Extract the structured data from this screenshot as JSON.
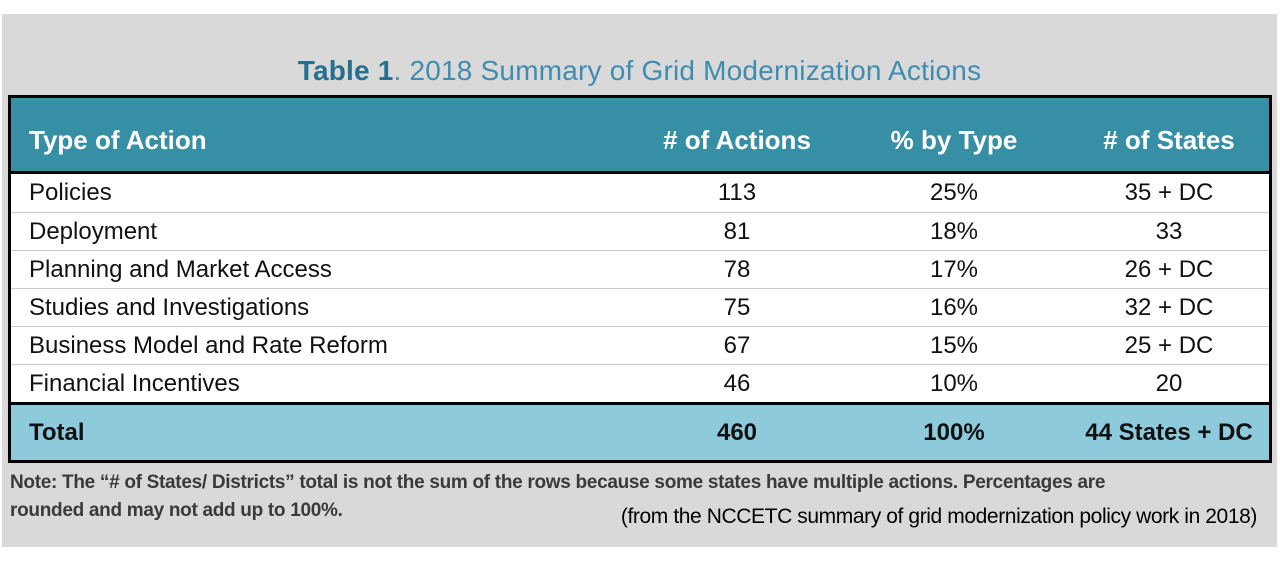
{
  "title": {
    "prefix": "Table 1",
    "rest": ". 2018 Summary of Grid Modernization Actions"
  },
  "table": {
    "headers": [
      "Type of Action",
      "# of Actions",
      "% by Type",
      "# of States"
    ],
    "rows": [
      {
        "type": "Policies",
        "actions": "113",
        "pct": "25%",
        "states": "35 + DC"
      },
      {
        "type": "Deployment",
        "actions": "81",
        "pct": "18%",
        "states": "33"
      },
      {
        "type": "Planning and Market Access",
        "actions": "78",
        "pct": "17%",
        "states": "26 + DC"
      },
      {
        "type": "Studies and Investigations",
        "actions": "75",
        "pct": "16%",
        "states": "32 + DC"
      },
      {
        "type": "Business Model and Rate Reform",
        "actions": "67",
        "pct": "15%",
        "states": "25 + DC"
      },
      {
        "type": "Financial Incentives",
        "actions": "46",
        "pct": "10%",
        "states": "20"
      }
    ],
    "total": {
      "type": "Total",
      "actions": "460",
      "pct": "100%",
      "states": "44 States + DC"
    }
  },
  "note": {
    "line1": "Note: The “# of States/ Districts” total is not the sum of the rows because some states have multiple actions. Percentages are",
    "line2": "rounded and may not add up to 100%."
  },
  "caption": "(from the NCCETC summary of grid modernization policy work in 2018)",
  "colors": {
    "header_bg": "#368FA4",
    "total_bg": "#8DCADC",
    "panel_bg": "#D9D9D9",
    "title_accent": "#26708F",
    "title_text": "#3E8CB0"
  }
}
